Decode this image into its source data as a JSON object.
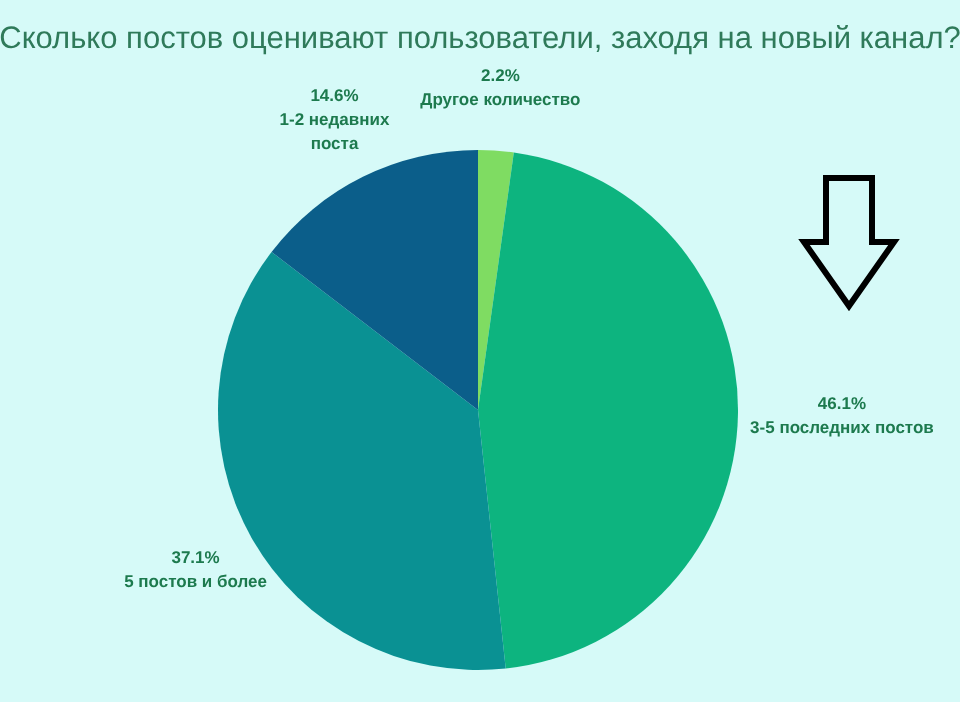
{
  "chart_data": {
    "type": "pie",
    "title": "Сколько постов оценивают пользователи, заходя на новый канал?",
    "categories": [
      "Другое количество",
      "3-5 последних постов",
      "5 постов и более",
      "1-2 недавних поста"
    ],
    "values": [
      2.2,
      46.1,
      37.1,
      14.6
    ],
    "value_labels": [
      "2.2%",
      "46.1%",
      "37.1%",
      "14.6%"
    ],
    "colors": [
      "#7fdc62",
      "#0db47f",
      "#0a9193",
      "#0b5e8a"
    ]
  }
}
